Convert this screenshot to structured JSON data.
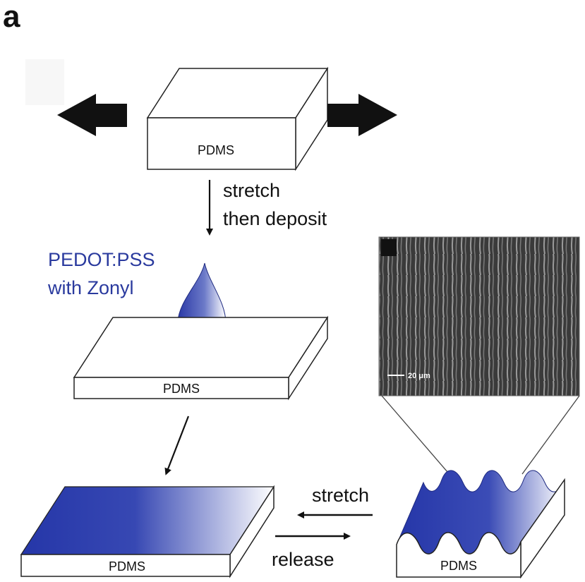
{
  "panel_label": "a",
  "step1": {
    "block_label": "PDMS"
  },
  "step1_arrow": {
    "line1": "stretch",
    "line2": "then deposit"
  },
  "solution": {
    "line1": "PEDOT:PSS",
    "line2": "with Zonyl"
  },
  "step2": {
    "block_label": "PDMS"
  },
  "step3": {
    "block_label": "PDMS"
  },
  "step4": {
    "block_label": "PDMS"
  },
  "cycle": {
    "stretch_label": "stretch",
    "release_label": "release"
  },
  "micrograph": {
    "scale_bar_label": "20 μm"
  },
  "colors": {
    "film_dark": "#2536a8",
    "film_light": "#ffffff",
    "arrow_fill": "#111111",
    "text_blue": "#2a3a9e"
  },
  "icons": [
    "left-arrow-icon",
    "right-arrow-icon",
    "droplet-icon"
  ]
}
